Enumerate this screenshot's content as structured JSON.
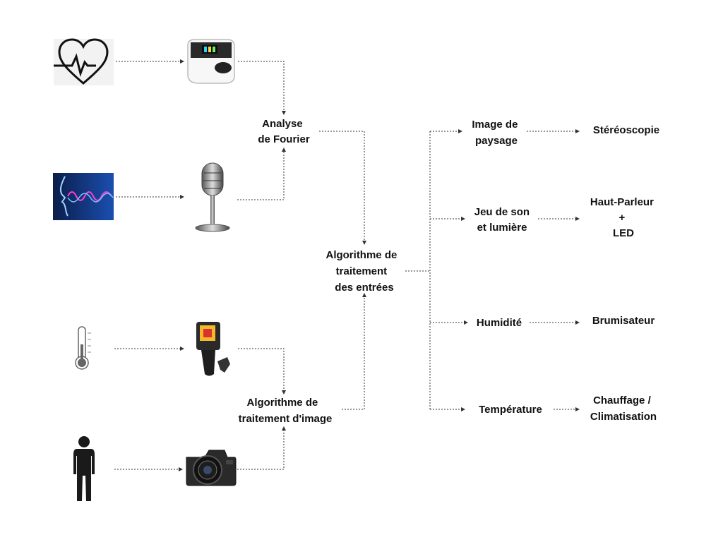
{
  "nodes": {
    "fourier": [
      "Analyse",
      "de Fourier"
    ],
    "image_algo": [
      "Algorithme de",
      "traitement d'image"
    ],
    "input_algo": [
      "Algorithme de",
      "traitement",
      "des entrées"
    ],
    "landscape": [
      "Image de",
      "paysage"
    ],
    "sound_light": [
      "Jeu de son",
      "et lumière"
    ],
    "humidity": [
      "Humidité"
    ],
    "temperature": [
      "Température"
    ],
    "stereo": [
      "Stéréoscopie"
    ],
    "speaker_led": [
      "Haut-Parleur",
      "+",
      "LED"
    ],
    "mister": [
      "Brumisateur"
    ],
    "hvac": [
      "Chauffage /",
      "Climatisation"
    ]
  },
  "icons": {
    "heart": "heartbeat-icon",
    "oximeter": "pulse-oximeter-icon",
    "voice": "voice-wave-icon",
    "microphone": "microphone-icon",
    "thermometer": "thermometer-icon",
    "thermal_camera": "thermal-camera-icon",
    "person": "person-silhouette-icon",
    "camera": "dslr-camera-icon"
  },
  "colors": {
    "line": "#333333",
    "text": "#111111",
    "voice_bg": "#0a2a6b",
    "voice_wave": "#ff3fd0"
  }
}
